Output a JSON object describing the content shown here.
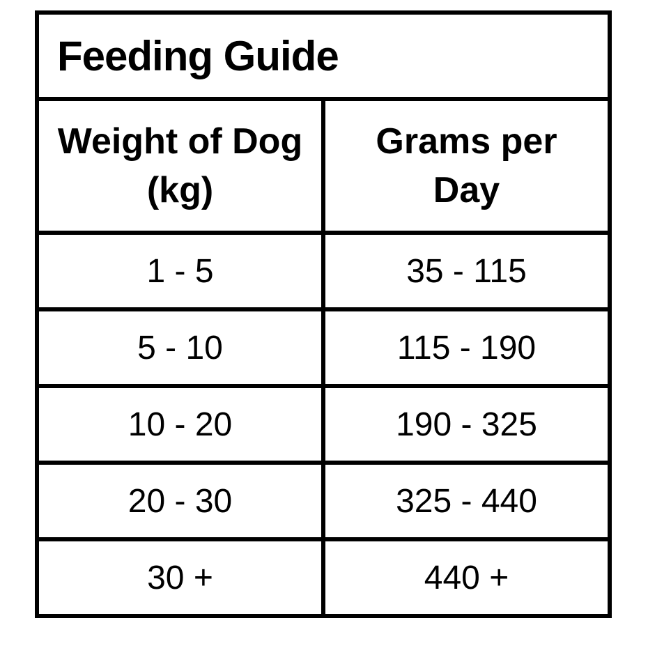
{
  "page": {
    "background": "#ffffff"
  },
  "table": {
    "border_color": "#000000",
    "text_color": "#000000",
    "cell_background": "#ffffff"
  },
  "chart_data": {
    "type": "table",
    "title": "Feeding Guide",
    "columns": [
      "Weight of Dog (kg)",
      "Grams per Day"
    ],
    "rows": [
      [
        "1 - 5",
        "35 - 115"
      ],
      [
        "5 - 10",
        "115 - 190"
      ],
      [
        "10 - 20",
        "190 - 325"
      ],
      [
        "20 - 30",
        "325 - 440"
      ],
      [
        "30 +",
        "440 +"
      ]
    ],
    "layout": {
      "title_align": "left",
      "cell_align": "center",
      "grid": "all-borders",
      "border_px": 6
    }
  }
}
